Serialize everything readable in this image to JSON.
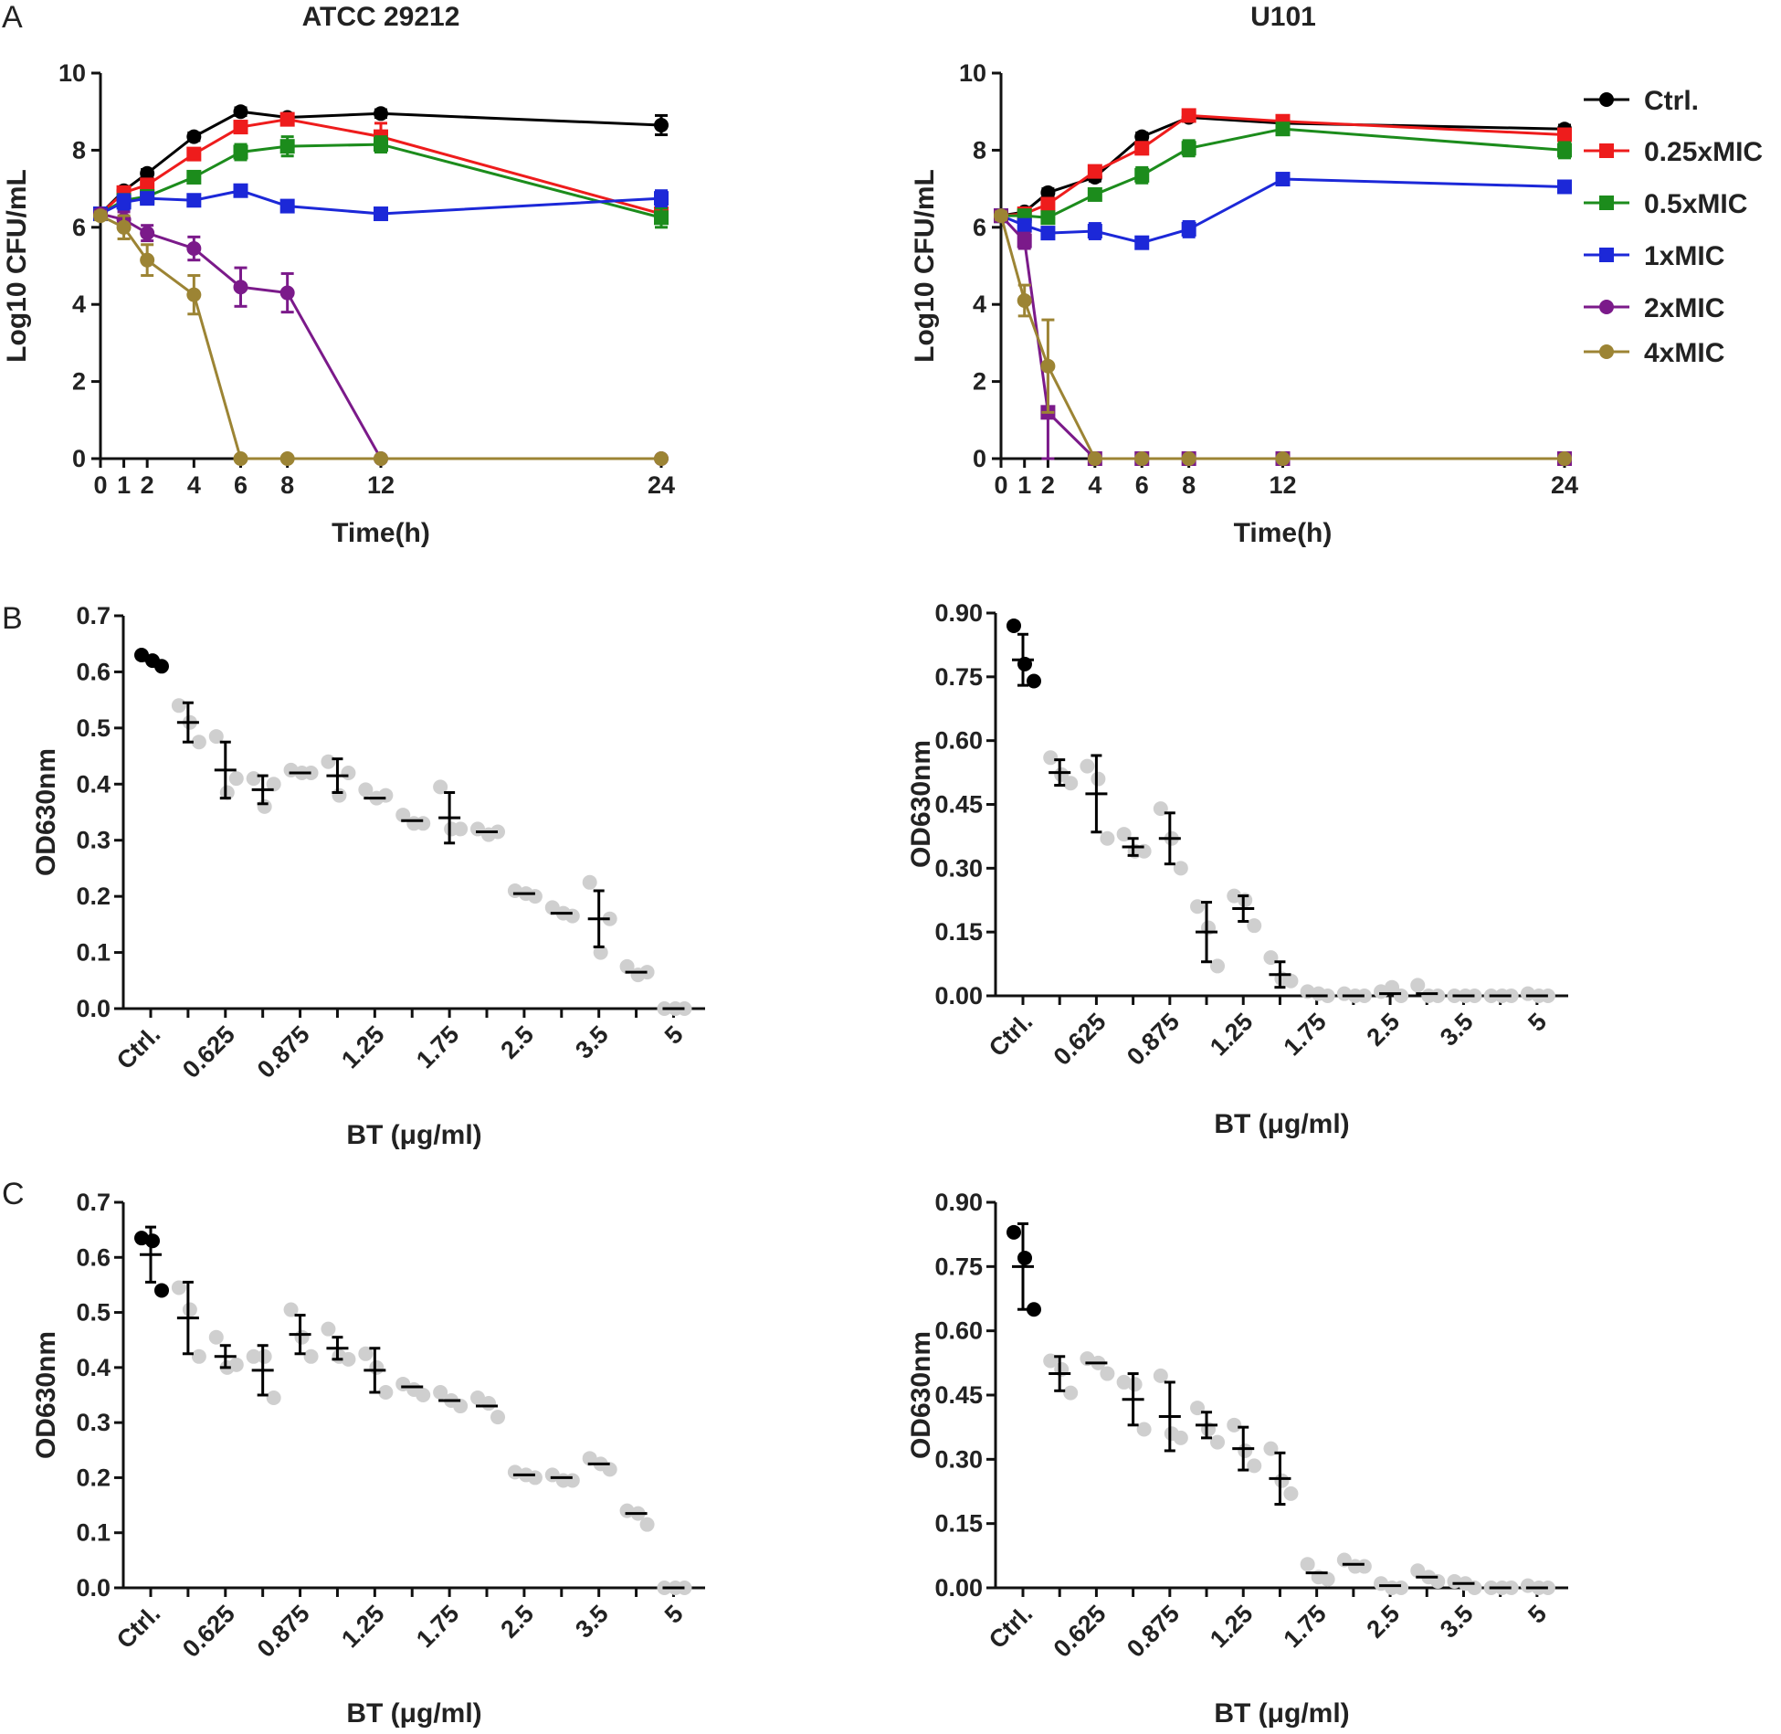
{
  "panel_labels": [
    "A",
    "B",
    "C"
  ],
  "colors": {
    "ctrl": "#000000",
    "mic025": "#ee1c1c",
    "mic05": "#1c8c1c",
    "mic1": "#1c28d8",
    "mic2": "#7b1a8a",
    "mic4": "#9c8434",
    "axis": "#111111",
    "rep": "#cfcfcf"
  },
  "chart_data": [
    {
      "id": "A1",
      "type": "line",
      "title": "ATCC 29212",
      "xlabel": "Time(h)",
      "ylabel": "Log10 CFU/mL",
      "xlim": [
        0,
        24
      ],
      "ylim": [
        0,
        10
      ],
      "xticks": [
        0,
        1,
        2,
        4,
        6,
        8,
        12,
        24
      ],
      "yticks": [
        0,
        2,
        4,
        6,
        8,
        10
      ],
      "x": [
        0,
        1,
        2,
        4,
        6,
        8,
        12,
        24
      ],
      "series": [
        {
          "name": "Ctrl.",
          "color": "#000000",
          "marker": "circle",
          "values": [
            6.35,
            6.95,
            7.4,
            8.35,
            9.0,
            8.85,
            8.95,
            8.65
          ],
          "err": [
            0.1,
            0.1,
            0.1,
            0.1,
            0.1,
            0.1,
            0.1,
            0.25
          ]
        },
        {
          "name": "0.25xMIC",
          "color": "#ee1c1c",
          "marker": "square",
          "values": [
            6.35,
            6.9,
            7.1,
            7.9,
            8.6,
            8.8,
            8.35,
            6.35
          ],
          "err": [
            0.1,
            0.1,
            0.1,
            0.1,
            0.15,
            0.1,
            0.35,
            0.15
          ]
        },
        {
          "name": "0.5xMIC",
          "color": "#1c8c1c",
          "marker": "square",
          "values": [
            6.35,
            6.7,
            6.8,
            7.3,
            7.95,
            8.1,
            8.15,
            6.25
          ],
          "err": [
            0.1,
            0.1,
            0.1,
            0.15,
            0.2,
            0.25,
            0.2,
            0.25
          ]
        },
        {
          "name": "1xMIC",
          "color": "#1c28d8",
          "marker": "square",
          "values": [
            6.35,
            6.65,
            6.75,
            6.7,
            6.95,
            6.55,
            6.35,
            6.75
          ],
          "err": [
            0.1,
            0.2,
            0.1,
            0.1,
            0.1,
            0.1,
            0.1,
            0.2
          ]
        },
        {
          "name": "2xMIC",
          "color": "#7b1a8a",
          "marker": "circle",
          "values": [
            6.35,
            6.2,
            5.85,
            5.45,
            4.45,
            4.3,
            0.0,
            0.0
          ],
          "err": [
            0.1,
            0.2,
            0.2,
            0.3,
            0.5,
            0.5,
            0,
            0
          ]
        },
        {
          "name": "4xMIC",
          "color": "#9c8434",
          "marker": "circle",
          "values": [
            6.3,
            6.0,
            5.15,
            4.25,
            0.0,
            0.0,
            0.0,
            0.0
          ],
          "err": [
            0.1,
            0.3,
            0.4,
            0.5,
            0,
            0,
            0,
            0
          ]
        }
      ]
    },
    {
      "id": "A2",
      "type": "line",
      "title": "U101",
      "xlabel": "Time(h)",
      "ylabel": "Log10 CFU/mL",
      "xlim": [
        0,
        24
      ],
      "ylim": [
        0,
        10
      ],
      "xticks": [
        0,
        1,
        2,
        4,
        6,
        8,
        12,
        24
      ],
      "yticks": [
        0,
        2,
        4,
        6,
        8,
        10
      ],
      "x": [
        0,
        1,
        2,
        4,
        6,
        8,
        12,
        24
      ],
      "series": [
        {
          "name": "Ctrl.",
          "color": "#000000",
          "marker": "circle",
          "values": [
            6.3,
            6.4,
            6.9,
            7.3,
            8.35,
            8.85,
            8.7,
            8.55
          ],
          "err": [
            0.1,
            0.1,
            0.1,
            0.1,
            0.1,
            0.1,
            0.1,
            0.1
          ]
        },
        {
          "name": "0.25xMIC",
          "color": "#ee1c1c",
          "marker": "square",
          "values": [
            6.3,
            6.35,
            6.6,
            7.45,
            8.05,
            8.9,
            8.75,
            8.4
          ],
          "err": [
            0.1,
            0.1,
            0.15,
            0.1,
            0.15,
            0.1,
            0.1,
            0.15
          ]
        },
        {
          "name": "0.5xMIC",
          "color": "#1c8c1c",
          "marker": "square",
          "values": [
            6.3,
            6.3,
            6.25,
            6.85,
            7.35,
            8.05,
            8.55,
            8.0
          ],
          "err": [
            0.1,
            0.1,
            0.1,
            0.1,
            0.2,
            0.2,
            0.1,
            0.2
          ]
        },
        {
          "name": "1xMIC",
          "color": "#1c28d8",
          "marker": "square",
          "values": [
            6.3,
            6.05,
            5.85,
            5.9,
            5.6,
            5.95,
            7.25,
            7.05
          ],
          "err": [
            0.1,
            0.1,
            0.15,
            0.2,
            0.1,
            0.2,
            0.1,
            0.15
          ]
        },
        {
          "name": "2xMIC",
          "color": "#7b1a8a",
          "marker": "square",
          "values": [
            6.3,
            5.65,
            1.2,
            0.0,
            0.0,
            0.0,
            0.0,
            0.0
          ],
          "err": [
            0.1,
            0.2,
            1.2,
            0,
            0,
            0,
            0,
            0
          ]
        },
        {
          "name": "4xMIC",
          "color": "#9c8434",
          "marker": "circle",
          "values": [
            6.3,
            4.1,
            2.4,
            0.0,
            0.0,
            0.0,
            0.0,
            0.0
          ],
          "err": [
            0.1,
            0.4,
            1.2,
            0,
            0,
            0,
            0,
            0
          ]
        }
      ]
    },
    {
      "id": "B1",
      "type": "scatter",
      "xlabel": "BT (μg/ml)",
      "ylabel": "OD630nm",
      "ylim": [
        0,
        0.7
      ],
      "yticks": [
        "0.0",
        "0.1",
        "0.2",
        "0.3",
        "0.4",
        "0.5",
        "0.6",
        "0.7"
      ],
      "tick_labels": [
        "Ctrl.",
        "0.625",
        "0.875",
        "1.25",
        "1.75",
        "2.5",
        "3.5",
        "5"
      ],
      "means": [
        0.62,
        0.51,
        0.425,
        0.39,
        0.42,
        0.415,
        0.375,
        0.335,
        0.34,
        0.315,
        0.205,
        0.17,
        0.16,
        0.065,
        0.0
      ],
      "sd": [
        0.0,
        0.035,
        0.05,
        0.025,
        0.0,
        0.03,
        0.0,
        0.0,
        0.045,
        0.0,
        0.0,
        0.0,
        0.05,
        0.0,
        0.0
      ],
      "points": [
        [
          0.63,
          0.62,
          0.61
        ],
        [
          0.54,
          0.51,
          0.475
        ],
        [
          0.485,
          0.385,
          0.41
        ],
        [
          0.41,
          0.36,
          0.4
        ],
        [
          0.425,
          0.42,
          0.42
        ],
        [
          0.44,
          0.38,
          0.42
        ],
        [
          0.39,
          0.375,
          0.38
        ],
        [
          0.345,
          0.33,
          0.33
        ],
        [
          0.395,
          0.32,
          0.32
        ],
        [
          0.32,
          0.31,
          0.315
        ],
        [
          0.21,
          0.205,
          0.2
        ],
        [
          0.18,
          0.17,
          0.165
        ],
        [
          0.225,
          0.1,
          0.16
        ],
        [
          0.075,
          0.06,
          0.065
        ],
        [
          0.0,
          0.0,
          0.0
        ]
      ]
    },
    {
      "id": "B2",
      "type": "scatter",
      "xlabel": "BT (μg/ml)",
      "ylabel": "OD630nm",
      "ylim": [
        0,
        0.9
      ],
      "yticks": [
        "0.00",
        "0.15",
        "0.30",
        "0.45",
        "0.60",
        "0.75",
        "0.90"
      ],
      "tick_labels": [
        "Ctrl.",
        "0.625",
        "0.875",
        "1.25",
        "1.75",
        "2.5",
        "3.5",
        "5"
      ],
      "means": [
        0.79,
        0.525,
        0.475,
        0.35,
        0.37,
        0.15,
        0.205,
        0.05,
        0.0,
        0.0,
        0.005,
        0.005,
        0.0,
        0.0,
        0.0
      ],
      "sd": [
        0.06,
        0.03,
        0.09,
        0.02,
        0.06,
        0.07,
        0.03,
        0.03,
        0.0,
        0.0,
        0.0,
        0.0,
        0.0,
        0.0,
        0.0
      ],
      "points": [
        [
          0.87,
          0.78,
          0.74
        ],
        [
          0.56,
          0.52,
          0.5
        ],
        [
          0.54,
          0.51,
          0.37
        ],
        [
          0.38,
          0.34,
          0.34
        ],
        [
          0.44,
          0.37,
          0.3
        ],
        [
          0.21,
          0.16,
          0.07
        ],
        [
          0.235,
          0.225,
          0.165
        ],
        [
          0.09,
          0.04,
          0.035
        ],
        [
          0.01,
          0.005,
          0.0
        ],
        [
          0.005,
          0.0,
          0.0
        ],
        [
          0.01,
          0.02,
          0.0
        ],
        [
          0.025,
          0.0,
          0.0
        ],
        [
          0.0,
          0.0,
          0.0
        ],
        [
          0.0,
          0.0,
          0.0
        ],
        [
          0.005,
          0.0,
          0.0
        ]
      ]
    },
    {
      "id": "C1",
      "type": "scatter",
      "xlabel": "BT (μg/ml)",
      "ylabel": "OD630nm",
      "ylim": [
        0,
        0.7
      ],
      "yticks": [
        "0.0",
        "0.1",
        "0.2",
        "0.3",
        "0.4",
        "0.5",
        "0.6",
        "0.7"
      ],
      "tick_labels": [
        "Ctrl.",
        "0.625",
        "0.875",
        "1.25",
        "1.75",
        "2.5",
        "3.5",
        "5"
      ],
      "means": [
        0.605,
        0.49,
        0.42,
        0.395,
        0.46,
        0.435,
        0.395,
        0.365,
        0.34,
        0.33,
        0.205,
        0.2,
        0.225,
        0.135,
        0.0
      ],
      "sd": [
        0.05,
        0.065,
        0.02,
        0.045,
        0.035,
        0.02,
        0.04,
        0.0,
        0.0,
        0.0,
        0.0,
        0.0,
        0.0,
        0.0,
        0.0
      ],
      "points": [
        [
          0.635,
          0.63,
          0.54
        ],
        [
          0.545,
          0.505,
          0.42
        ],
        [
          0.455,
          0.4,
          0.405
        ],
        [
          0.42,
          0.42,
          0.345
        ],
        [
          0.505,
          0.455,
          0.42
        ],
        [
          0.47,
          0.42,
          0.415
        ],
        [
          0.425,
          0.4,
          0.355
        ],
        [
          0.37,
          0.36,
          0.35
        ],
        [
          0.355,
          0.34,
          0.33
        ],
        [
          0.345,
          0.335,
          0.31
        ],
        [
          0.21,
          0.205,
          0.2
        ],
        [
          0.205,
          0.195,
          0.195
        ],
        [
          0.235,
          0.225,
          0.215
        ],
        [
          0.14,
          0.135,
          0.115
        ],
        [
          0.0,
          0.0,
          0.0
        ]
      ]
    },
    {
      "id": "C2",
      "type": "scatter",
      "xlabel": "BT (μg/ml)",
      "ylabel": "OD630nm",
      "ylim": [
        0,
        0.9
      ],
      "yticks": [
        "0.00",
        "0.15",
        "0.30",
        "0.45",
        "0.60",
        "0.75",
        "0.90"
      ],
      "tick_labels": [
        "Ctrl.",
        "0.625",
        "0.875",
        "1.25",
        "1.75",
        "2.5",
        "3.5",
        "5"
      ],
      "means": [
        0.75,
        0.5,
        0.525,
        0.44,
        0.4,
        0.38,
        0.325,
        0.255,
        0.035,
        0.055,
        0.005,
        0.025,
        0.01,
        0.0,
        0.0
      ],
      "sd": [
        0.1,
        0.04,
        0.0,
        0.06,
        0.08,
        0.03,
        0.05,
        0.06,
        0.0,
        0.0,
        0.0,
        0.0,
        0.0,
        0.0,
        0.0
      ],
      "points": [
        [
          0.83,
          0.77,
          0.65
        ],
        [
          0.53,
          0.51,
          0.455
        ],
        [
          0.535,
          0.525,
          0.5
        ],
        [
          0.48,
          0.475,
          0.37
        ],
        [
          0.495,
          0.36,
          0.35
        ],
        [
          0.42,
          0.37,
          0.34
        ],
        [
          0.38,
          0.32,
          0.285
        ],
        [
          0.325,
          0.25,
          0.22
        ],
        [
          0.055,
          0.025,
          0.02
        ],
        [
          0.065,
          0.05,
          0.05
        ],
        [
          0.01,
          0.0,
          0.0
        ],
        [
          0.04,
          0.025,
          0.015
        ],
        [
          0.015,
          0.01,
          0.0
        ],
        [
          0.0,
          0.0,
          0.0
        ],
        [
          0.005,
          0.0,
          0.0
        ]
      ]
    }
  ]
}
